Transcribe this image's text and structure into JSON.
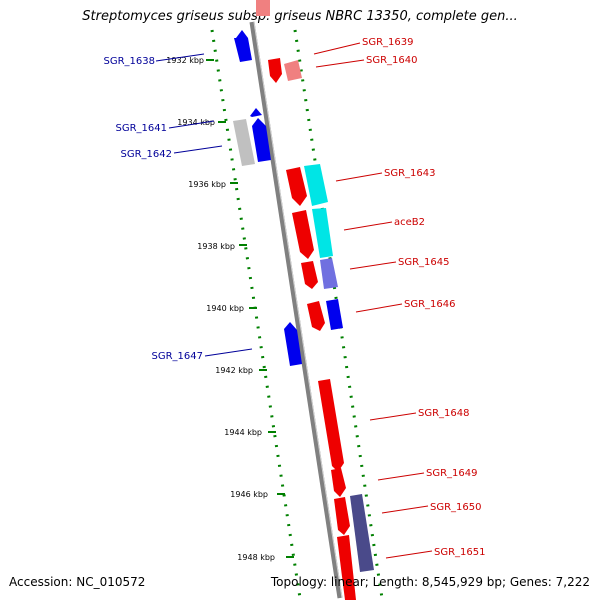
{
  "title": "Streptomyces griseus subsp. griseus NBRC 13350, complete gen...",
  "accession": "Accession: NC_010572",
  "summary": "Topology: linear; Length: 8,545,929 bp; Genes: 7,222",
  "colors": {
    "left_label": "#000099",
    "right_label": "#cc0000",
    "dotted_track": "#008000",
    "backbone": "#808080"
  },
  "ticks": [
    "1932 kbp",
    "1934 kbp",
    "1936 kbp",
    "1938 kbp",
    "1940 kbp",
    "1942 kbp",
    "1944 kbp",
    "1946 kbp",
    "1948 kbp"
  ],
  "genes_left": [
    {
      "name": "SGR_1638"
    },
    {
      "name": "SGR_1641"
    },
    {
      "name": "SGR_1642"
    },
    {
      "name": "SGR_1647"
    }
  ],
  "genes_right": [
    {
      "name": "SGR_1639"
    },
    {
      "name": "SGR_1640"
    },
    {
      "name": "SGR_1643"
    },
    {
      "name": "aceB2"
    },
    {
      "name": "SGR_1645"
    },
    {
      "name": "SGR_1646"
    },
    {
      "name": "SGR_1648"
    },
    {
      "name": "SGR_1649"
    },
    {
      "name": "SGR_1650"
    },
    {
      "name": "SGR_1651"
    }
  ]
}
